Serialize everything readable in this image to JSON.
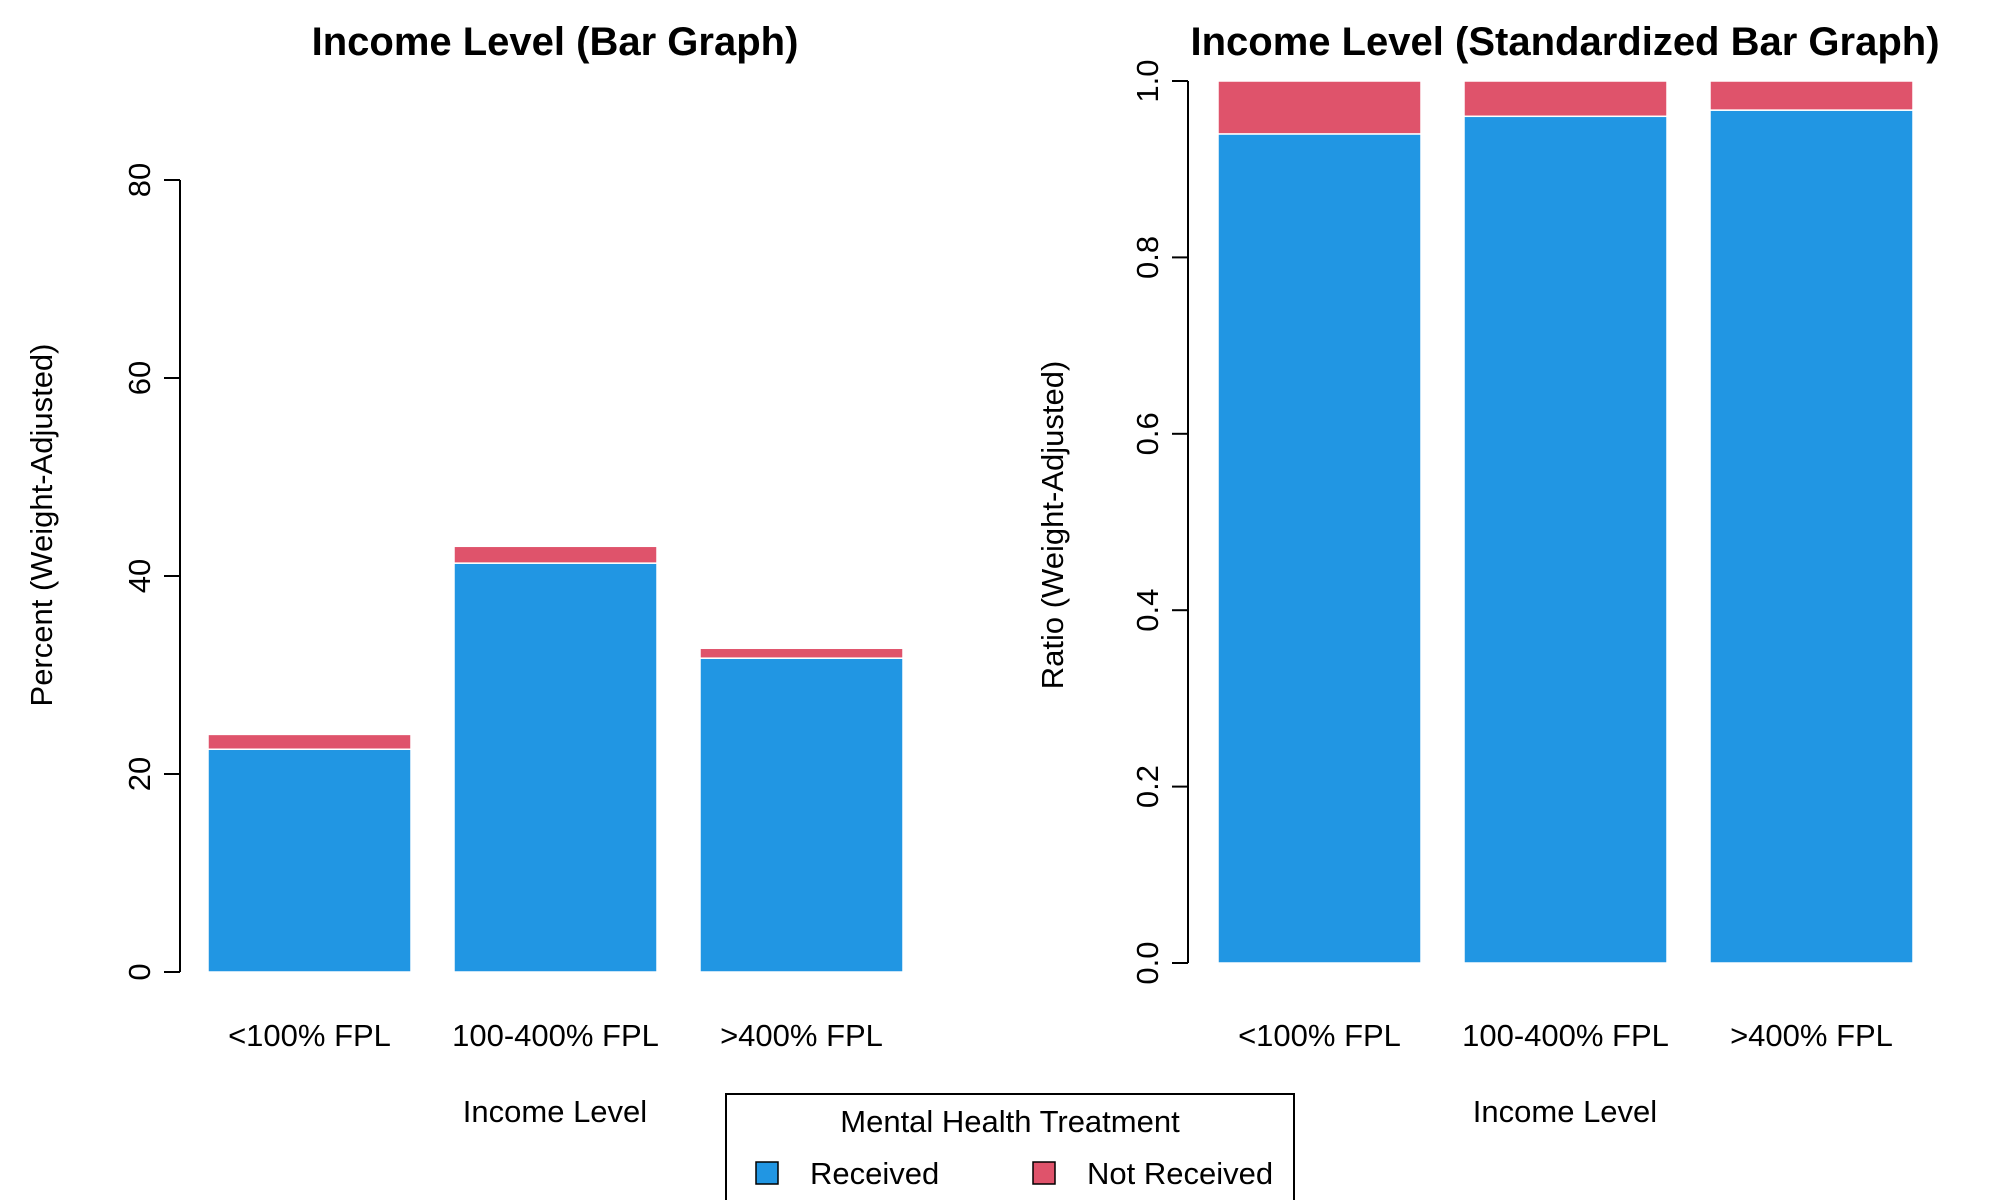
{
  "legend": {
    "title": "Mental Health Treatment",
    "items": [
      {
        "label": "Received",
        "color": "#2196E3"
      },
      {
        "label": "Not Received",
        "color": "#DF536B"
      }
    ]
  },
  "chart_data": [
    {
      "type": "bar",
      "stacked": true,
      "title": "Income Level (Bar Graph)",
      "xlabel": "Income Level",
      "ylabel": "Percent (Weight-Adjusted)",
      "categories": [
        "<100% FPL",
        "100-400% FPL",
        ">400% FPL"
      ],
      "series": [
        {
          "name": "Received",
          "color": "#2196E3",
          "values": [
            22.5,
            41.3,
            31.7
          ]
        },
        {
          "name": "Not Received",
          "color": "#DF536B",
          "values": [
            1.5,
            1.7,
            1.0
          ]
        }
      ],
      "ylim": [
        0,
        80
      ],
      "yticks": [
        0,
        20,
        40,
        60,
        80
      ],
      "grid": false
    },
    {
      "type": "bar",
      "stacked": true,
      "title": "Income Level (Standardized Bar Graph)",
      "xlabel": "Income Level",
      "ylabel": "Ratio (Weight-Adjusted)",
      "categories": [
        "<100% FPL",
        "100-400% FPL",
        ">400% FPL"
      ],
      "series": [
        {
          "name": "Received",
          "color": "#2196E3",
          "values": [
            0.94,
            0.96,
            0.967
          ]
        },
        {
          "name": "Not Received",
          "color": "#DF536B",
          "values": [
            0.06,
            0.04,
            0.033
          ]
        }
      ],
      "ylim": [
        0,
        1.0
      ],
      "yticks": [
        "0.0",
        "0.2",
        "0.4",
        "0.6",
        "0.8",
        "1.0"
      ],
      "grid": false
    }
  ]
}
